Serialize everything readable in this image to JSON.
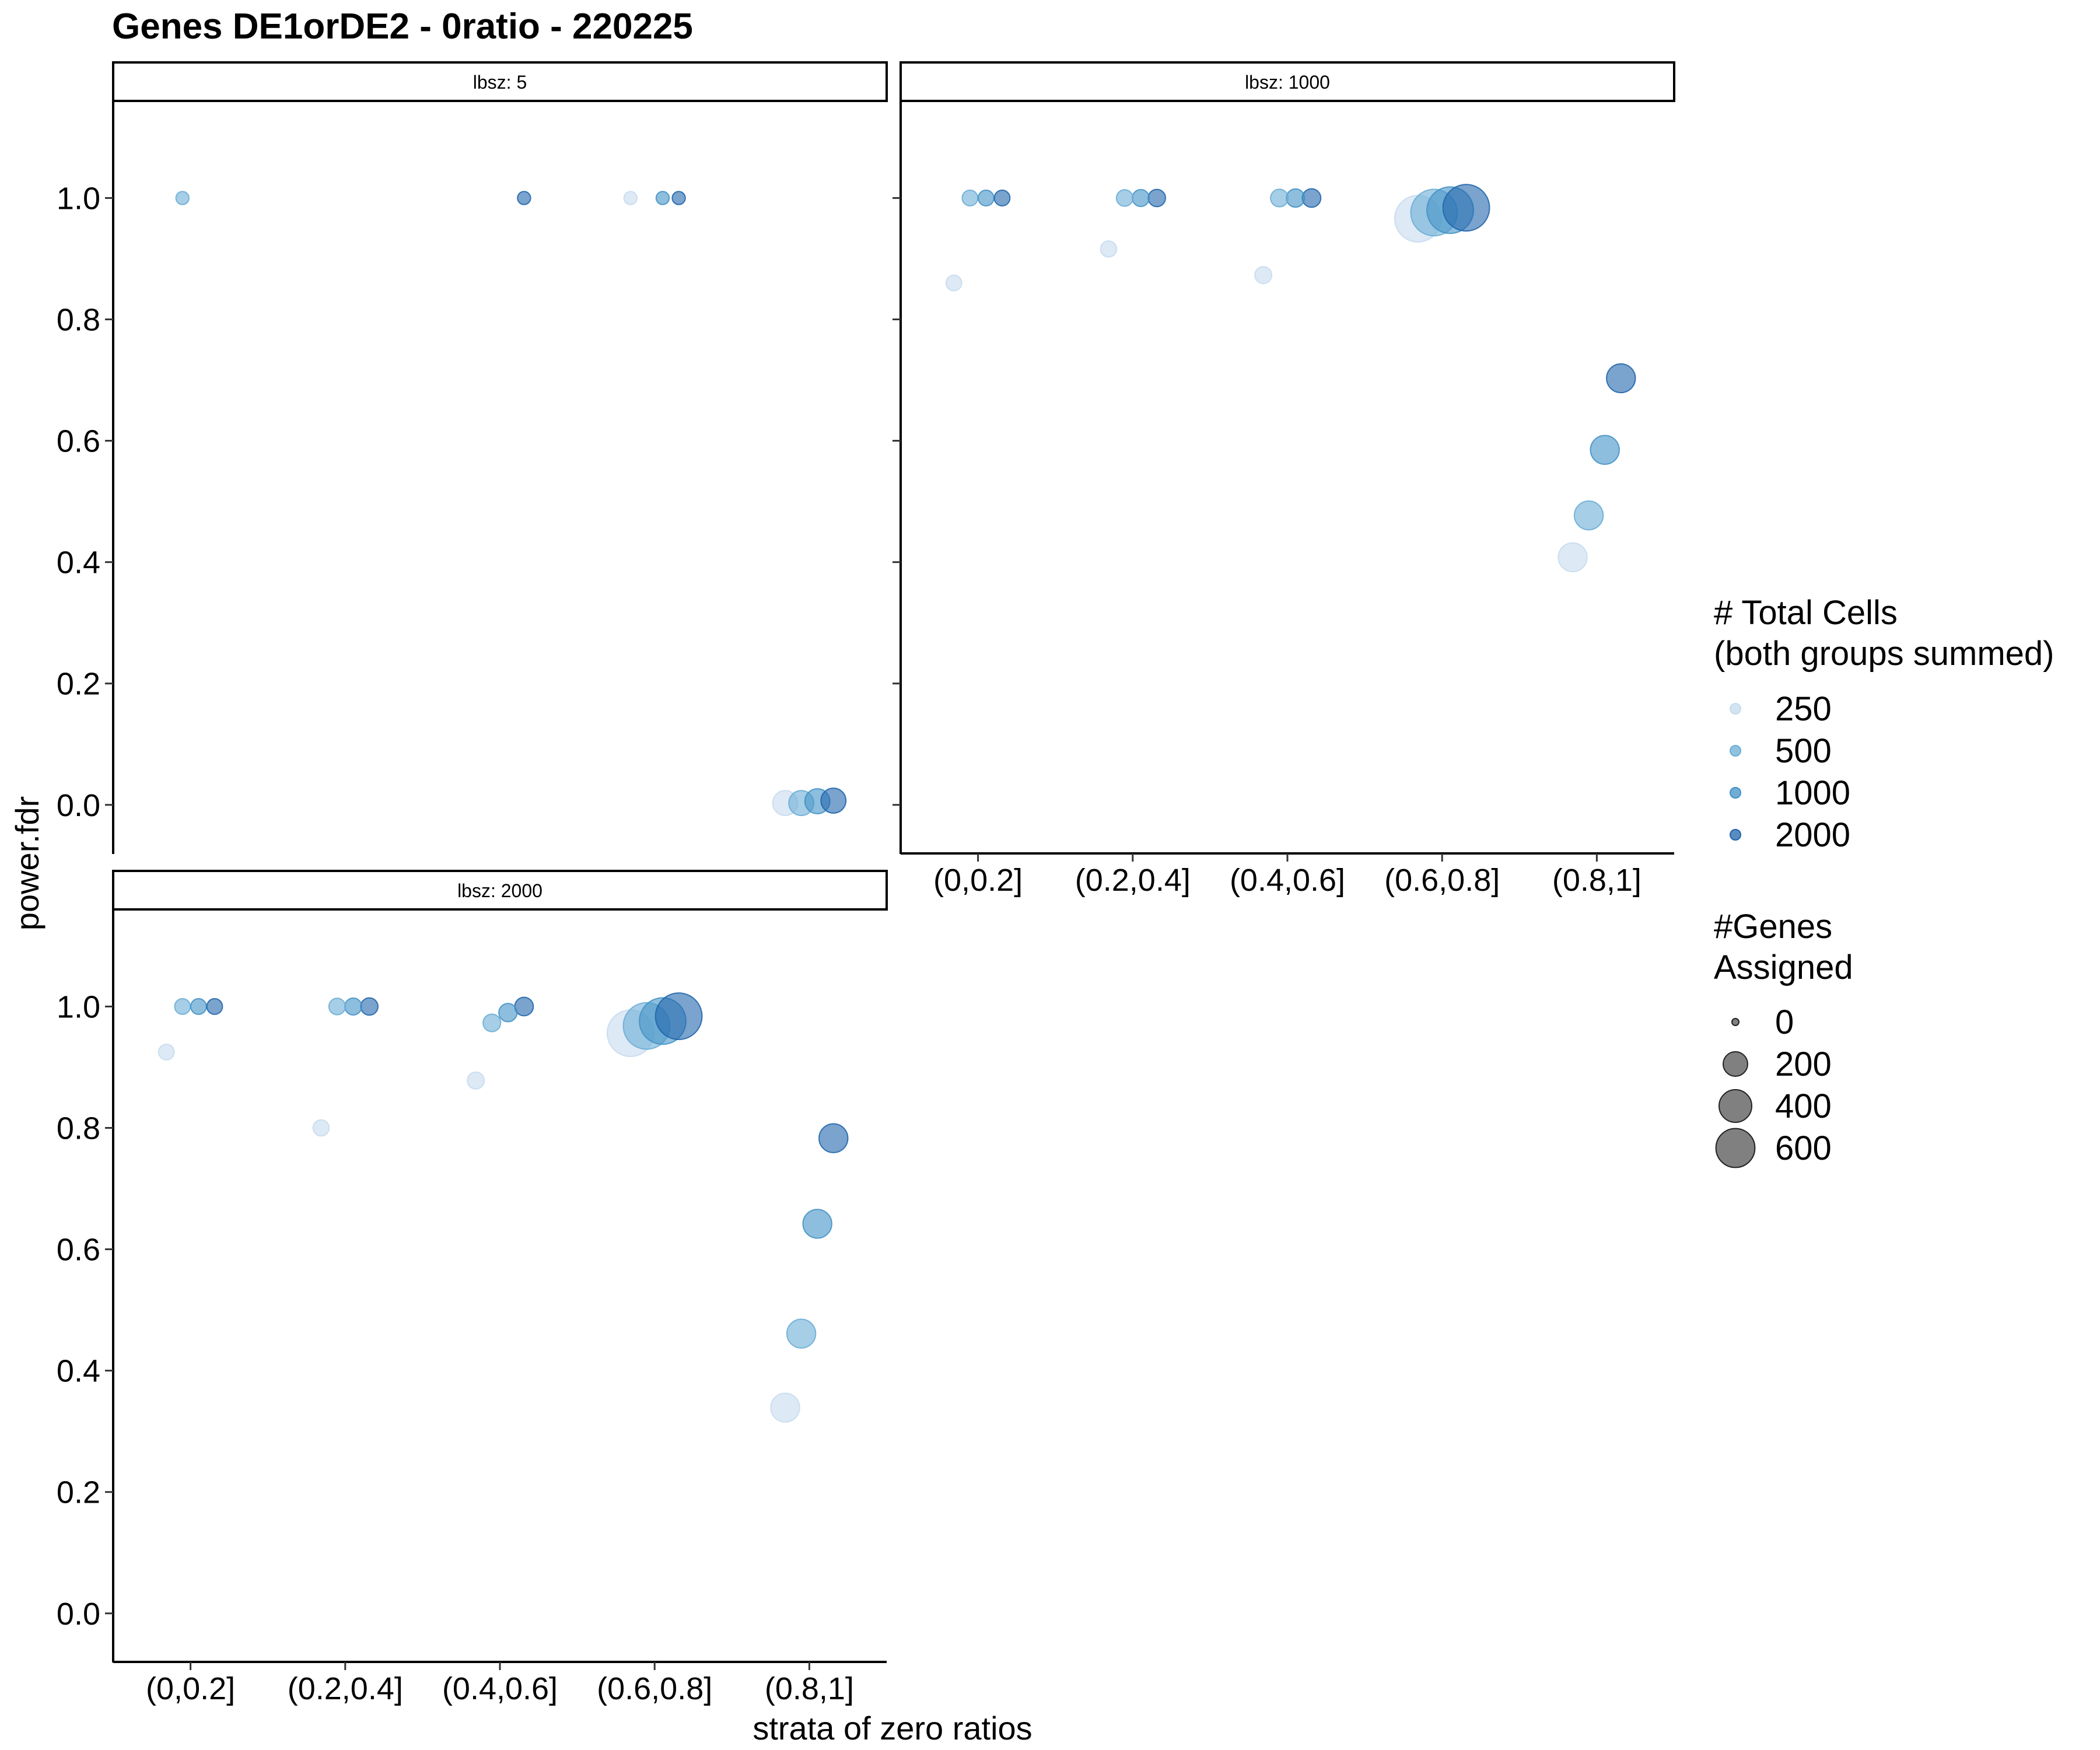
{
  "chart_data": {
    "type": "scatter",
    "title": "Genes DE1orDE2 - 0ratio - 220225",
    "xlabel": "strata of zero ratios",
    "ylabel": "power.fdr",
    "categories": [
      "(0,0.2]",
      "(0.2,0.4]",
      "(0.4,0.6]",
      "(0.6,0.8]",
      "(0.8,1]"
    ],
    "y_ticks": [
      "0.0",
      "0.2",
      "0.4",
      "0.6",
      "0.8",
      "1.0"
    ],
    "ylim": [
      -0.08,
      1.16
    ],
    "grid": false,
    "colors": {
      "250": "#c6dbef",
      "500": "#6baed6",
      "1000": "#4292c6",
      "2000": "#2166ac"
    },
    "panels": [
      {
        "strip": "lbsz: 5",
        "show_x_axis": false,
        "points": [
          {
            "category": 1,
            "cells": 500,
            "value": 1.0,
            "genes": 1
          },
          {
            "category": 3,
            "cells": 2000,
            "value": 1.0,
            "genes": 1
          },
          {
            "category": 4,
            "cells": 250,
            "value": 1.0,
            "genes": 1
          },
          {
            "category": 4,
            "cells": 1000,
            "value": 1.0,
            "genes": 1
          },
          {
            "category": 4,
            "cells": 2000,
            "value": 1.0,
            "genes": 1
          },
          {
            "category": 5,
            "cells": 250,
            "value": 0.003,
            "genes": 90
          },
          {
            "category": 5,
            "cells": 500,
            "value": 0.003,
            "genes": 90
          },
          {
            "category": 5,
            "cells": 1000,
            "value": 0.006,
            "genes": 90
          },
          {
            "category": 5,
            "cells": 2000,
            "value": 0.007,
            "genes": 90
          }
        ]
      },
      {
        "strip": "lbsz: 1000",
        "show_x_axis": true,
        "points": [
          {
            "category": 1,
            "cells": 250,
            "value": 0.86,
            "genes": 8
          },
          {
            "category": 1,
            "cells": 500,
            "value": 1.0,
            "genes": 8
          },
          {
            "category": 1,
            "cells": 1000,
            "value": 1.0,
            "genes": 8
          },
          {
            "category": 1,
            "cells": 2000,
            "value": 1.0,
            "genes": 8
          },
          {
            "category": 2,
            "cells": 250,
            "value": 0.916,
            "genes": 10
          },
          {
            "category": 2,
            "cells": 500,
            "value": 1.0,
            "genes": 12
          },
          {
            "category": 2,
            "cells": 1000,
            "value": 1.0,
            "genes": 14
          },
          {
            "category": 2,
            "cells": 2000,
            "value": 1.0,
            "genes": 16
          },
          {
            "category": 3,
            "cells": 250,
            "value": 0.873,
            "genes": 14
          },
          {
            "category": 3,
            "cells": 500,
            "value": 1.0,
            "genes": 18
          },
          {
            "category": 3,
            "cells": 1000,
            "value": 1.0,
            "genes": 22
          },
          {
            "category": 3,
            "cells": 2000,
            "value": 1.0,
            "genes": 24
          },
          {
            "category": 4,
            "cells": 250,
            "value": 0.966,
            "genes": 620
          },
          {
            "category": 4,
            "cells": 500,
            "value": 0.976,
            "genes": 620
          },
          {
            "category": 4,
            "cells": 1000,
            "value": 0.98,
            "genes": 620
          },
          {
            "category": 4,
            "cells": 2000,
            "value": 0.984,
            "genes": 620
          },
          {
            "category": 5,
            "cells": 250,
            "value": 0.408,
            "genes": 150
          },
          {
            "category": 5,
            "cells": 500,
            "value": 0.477,
            "genes": 150
          },
          {
            "category": 5,
            "cells": 1000,
            "value": 0.585,
            "genes": 150
          },
          {
            "category": 5,
            "cells": 2000,
            "value": 0.703,
            "genes": 150
          }
        ]
      },
      {
        "strip": "lbsz: 2000",
        "show_x_axis": true,
        "points": [
          {
            "category": 1,
            "cells": 250,
            "value": 0.925,
            "genes": 8
          },
          {
            "category": 1,
            "cells": 500,
            "value": 1.0,
            "genes": 8
          },
          {
            "category": 1,
            "cells": 1000,
            "value": 1.0,
            "genes": 8
          },
          {
            "category": 1,
            "cells": 2000,
            "value": 1.0,
            "genes": 8
          },
          {
            "category": 2,
            "cells": 250,
            "value": 0.8,
            "genes": 10
          },
          {
            "category": 2,
            "cells": 500,
            "value": 1.0,
            "genes": 12
          },
          {
            "category": 2,
            "cells": 1000,
            "value": 1.0,
            "genes": 14
          },
          {
            "category": 2,
            "cells": 2000,
            "value": 1.0,
            "genes": 16
          },
          {
            "category": 3,
            "cells": 250,
            "value": 0.878,
            "genes": 14
          },
          {
            "category": 3,
            "cells": 500,
            "value": 0.973,
            "genes": 18
          },
          {
            "category": 3,
            "cells": 1000,
            "value": 0.99,
            "genes": 22
          },
          {
            "category": 3,
            "cells": 2000,
            "value": 1.0,
            "genes": 24
          },
          {
            "category": 4,
            "cells": 250,
            "value": 0.956,
            "genes": 620
          },
          {
            "category": 4,
            "cells": 500,
            "value": 0.968,
            "genes": 620
          },
          {
            "category": 4,
            "cells": 1000,
            "value": 0.976,
            "genes": 620
          },
          {
            "category": 4,
            "cells": 2000,
            "value": 0.984,
            "genes": 620
          },
          {
            "category": 5,
            "cells": 250,
            "value": 0.339,
            "genes": 150
          },
          {
            "category": 5,
            "cells": 500,
            "value": 0.461,
            "genes": 150
          },
          {
            "category": 5,
            "cells": 1000,
            "value": 0.642,
            "genes": 150
          },
          {
            "category": 5,
            "cells": 2000,
            "value": 0.783,
            "genes": 150
          }
        ]
      }
    ],
    "legend": {
      "position": "right",
      "color_title_line1": "# Total Cells",
      "color_title_line2": "(both groups summed)",
      "color_items": [
        "250",
        "500",
        "1000",
        "2000"
      ],
      "size_title_line1": "#Genes",
      "size_title_line2": "Assigned",
      "size_items": [
        {
          "label": "0",
          "value": 0
        },
        {
          "label": "200",
          "value": 200
        },
        {
          "label": "400",
          "value": 400
        },
        {
          "label": "600",
          "value": 600
        }
      ]
    }
  }
}
